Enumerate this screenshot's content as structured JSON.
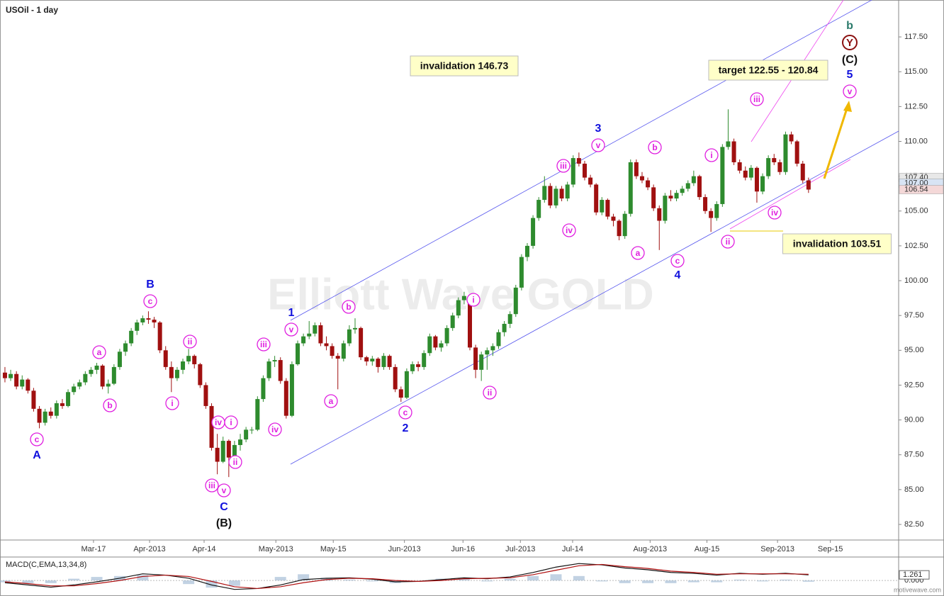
{
  "chart_data": {
    "type": "candlestick",
    "title": "USOil - 1 day",
    "watermark": "Elliott Wave GOLD",
    "xlim": [
      -0.86,
      155.7
    ],
    "ylim": [
      81.38,
      120.15
    ],
    "xticks": [
      {
        "value": 15.43,
        "label": "Mar-17"
      },
      {
        "value": 25.2,
        "label": "Apr-2013"
      },
      {
        "value": 34.7,
        "label": "Apr-14"
      },
      {
        "value": 47.2,
        "label": "May-2013"
      },
      {
        "value": 57.2,
        "label": "May-15"
      },
      {
        "value": 69.6,
        "label": "Jun-2013"
      },
      {
        "value": 79.8,
        "label": "Jun-16"
      },
      {
        "value": 89.8,
        "label": "Jul-2013"
      },
      {
        "value": 98.9,
        "label": "Jul-14"
      },
      {
        "value": 112.4,
        "label": "Aug-2013"
      },
      {
        "value": 122.3,
        "label": "Aug-15"
      },
      {
        "value": 134.6,
        "label": "Sep-2013"
      },
      {
        "value": 143.8,
        "label": "Sep-15"
      }
    ],
    "yticks": [
      {
        "value": 82.5,
        "label": "82.50"
      },
      {
        "value": 85,
        "label": "85.00"
      },
      {
        "value": 87.5,
        "label": "87.50"
      },
      {
        "value": 90,
        "label": "90.00"
      },
      {
        "value": 92.5,
        "label": "92.50"
      },
      {
        "value": 95,
        "label": "95.00"
      },
      {
        "value": 97.5,
        "label": "97.50"
      },
      {
        "value": 100,
        "label": "100.00"
      },
      {
        "value": 102.5,
        "label": "102.50"
      },
      {
        "value": 105,
        "label": "105.00"
      },
      {
        "value": 107.5,
        "label": "107.50"
      },
      {
        "value": 110,
        "label": "110.00"
      },
      {
        "value": 112.5,
        "label": "112.50"
      },
      {
        "value": 115,
        "label": "115.00"
      },
      {
        "value": 117.5,
        "label": "117.50"
      }
    ],
    "price_markers": [
      {
        "value": 107.4,
        "label": "107.40"
      },
      {
        "value": 107.0,
        "label": "107.00"
      },
      {
        "value": 106.54,
        "label": "106.54"
      }
    ],
    "up_color": "#2e8b2e",
    "down_color": "#a01010",
    "candles": [
      [
        93.4,
        93.8,
        92.7,
        93.0
      ],
      [
        93.0,
        93.6,
        92.8,
        93.3
      ],
      [
        93.3,
        93.5,
        92.2,
        92.4
      ],
      [
        92.4,
        93.2,
        92.2,
        92.9
      ],
      [
        92.9,
        93.0,
        91.9,
        92.1
      ],
      [
        92.1,
        92.3,
        90.6,
        90.8
      ],
      [
        90.8,
        91.0,
        89.4,
        89.8
      ],
      [
        89.8,
        90.8,
        89.6,
        90.6
      ],
      [
        90.6,
        90.9,
        90.1,
        90.3
      ],
      [
        90.3,
        91.4,
        90.1,
        91.2
      ],
      [
        91.2,
        91.5,
        90.8,
        91.0
      ],
      [
        91.0,
        92.2,
        90.9,
        92.0
      ],
      [
        92.0,
        92.6,
        91.8,
        92.4
      ],
      [
        92.4,
        92.9,
        92.2,
        92.7
      ],
      [
        92.7,
        93.5,
        92.5,
        93.3
      ],
      [
        93.3,
        93.8,
        93.1,
        93.6
      ],
      [
        93.6,
        94.1,
        93.3,
        93.9
      ],
      [
        93.9,
        94.0,
        92.2,
        92.4
      ],
      [
        92.4,
        92.9,
        91.9,
        92.6
      ],
      [
        92.6,
        94.0,
        92.5,
        93.8
      ],
      [
        93.8,
        95.1,
        93.6,
        94.9
      ],
      [
        94.9,
        95.7,
        94.6,
        95.5
      ],
      [
        95.5,
        96.6,
        95.3,
        96.4
      ],
      [
        96.4,
        97.2,
        96.1,
        97.0
      ],
      [
        97.0,
        97.5,
        96.8,
        97.3
      ],
      [
        97.3,
        97.8,
        96.9,
        97.2
      ],
      [
        97.2,
        97.4,
        96.6,
        97.0
      ],
      [
        97.0,
        97.1,
        94.8,
        95.0
      ],
      [
        95.0,
        95.3,
        93.6,
        93.8
      ],
      [
        93.8,
        94.2,
        92.0,
        93.0
      ],
      [
        93.0,
        93.8,
        92.8,
        93.6
      ],
      [
        93.6,
        94.4,
        93.3,
        94.2
      ],
      [
        94.2,
        95.1,
        94.0,
        94.6
      ],
      [
        94.6,
        94.7,
        93.7,
        94.0
      ],
      [
        94.0,
        94.1,
        92.3,
        92.5
      ],
      [
        92.5,
        92.7,
        90.8,
        91.0
      ],
      [
        91.0,
        91.2,
        87.8,
        88.0
      ],
      [
        88.0,
        89.0,
        86.1,
        87.0
      ],
      [
        87.0,
        88.8,
        86.9,
        88.5
      ],
      [
        88.5,
        88.6,
        85.9,
        87.3
      ],
      [
        87.3,
        88.5,
        86.6,
        88.2
      ],
      [
        88.2,
        89.0,
        87.8,
        88.6
      ],
      [
        88.6,
        89.5,
        88.4,
        89.3
      ],
      [
        89.3,
        89.5,
        89.0,
        89.3
      ],
      [
        89.3,
        91.7,
        89.2,
        91.5
      ],
      [
        91.5,
        93.2,
        91.3,
        93.0
      ],
      [
        93.0,
        94.4,
        92.8,
        94.2
      ],
      [
        94.2,
        94.6,
        93.8,
        94.3
      ],
      [
        94.3,
        94.5,
        92.6,
        92.8
      ],
      [
        92.8,
        93.0,
        90.1,
        90.3
      ],
      [
        90.3,
        94.2,
        90.2,
        94.0
      ],
      [
        94.0,
        95.7,
        93.9,
        95.5
      ],
      [
        95.5,
        96.2,
        95.3,
        96.0
      ],
      [
        96.0,
        97.1,
        95.8,
        96.2
      ],
      [
        96.2,
        97.0,
        96.0,
        96.8
      ],
      [
        96.8,
        97.0,
        95.3,
        95.5
      ],
      [
        95.5,
        96.0,
        95.0,
        95.3
      ],
      [
        95.3,
        95.5,
        94.4,
        94.6
      ],
      [
        94.6,
        94.8,
        92.2,
        94.4
      ],
      [
        94.4,
        95.7,
        94.2,
        95.5
      ],
      [
        95.5,
        96.8,
        95.3,
        96.5
      ],
      [
        96.5,
        97.3,
        96.2,
        96.6
      ],
      [
        96.6,
        96.7,
        94.3,
        94.5
      ],
      [
        94.5,
        94.6,
        93.9,
        94.2
      ],
      [
        94.2,
        94.6,
        93.9,
        94.4
      ],
      [
        94.4,
        94.5,
        93.4,
        93.8
      ],
      [
        93.8,
        94.8,
        93.6,
        94.6
      ],
      [
        94.6,
        94.7,
        93.6,
        93.8
      ],
      [
        93.8,
        94.0,
        92.0,
        92.2
      ],
      [
        92.2,
        92.4,
        91.3,
        91.6
      ],
      [
        91.6,
        93.7,
        91.5,
        93.5
      ],
      [
        93.5,
        94.2,
        93.3,
        94.0
      ],
      [
        94.0,
        94.2,
        93.5,
        93.8
      ],
      [
        93.8,
        95.0,
        93.6,
        94.8
      ],
      [
        94.8,
        96.2,
        94.6,
        96.0
      ],
      [
        96.0,
        96.1,
        95.0,
        95.2
      ],
      [
        95.2,
        95.7,
        94.9,
        95.5
      ],
      [
        95.5,
        96.8,
        95.3,
        96.6
      ],
      [
        96.6,
        97.7,
        96.4,
        97.5
      ],
      [
        97.5,
        98.8,
        97.3,
        98.6
      ],
      [
        98.6,
        99.2,
        98.3,
        98.9
      ],
      [
        98.9,
        99.0,
        95.0,
        95.2
      ],
      [
        95.2,
        95.4,
        93.0,
        93.6
      ],
      [
        93.6,
        94.9,
        92.8,
        94.7
      ],
      [
        94.7,
        95.2,
        93.6,
        95.0
      ],
      [
        95.0,
        95.5,
        94.6,
        95.3
      ],
      [
        95.3,
        96.5,
        95.1,
        96.3
      ],
      [
        96.3,
        97.1,
        96.0,
        96.9
      ],
      [
        96.9,
        97.8,
        96.6,
        97.6
      ],
      [
        97.6,
        99.7,
        97.4,
        99.5
      ],
      [
        99.5,
        101.9,
        99.3,
        101.7
      ],
      [
        101.7,
        102.7,
        101.4,
        102.5
      ],
      [
        102.5,
        104.7,
        102.3,
        104.5
      ],
      [
        104.5,
        106.0,
        104.3,
        105.8
      ],
      [
        105.8,
        107.5,
        105.6,
        106.8
      ],
      [
        106.8,
        107.0,
        105.2,
        105.4
      ],
      [
        105.4,
        106.8,
        105.2,
        106.6
      ],
      [
        106.6,
        106.8,
        105.7,
        105.9
      ],
      [
        105.9,
        107.1,
        105.7,
        106.9
      ],
      [
        106.9,
        109.0,
        106.7,
        108.8
      ],
      [
        108.8,
        109.2,
        108.2,
        108.4
      ],
      [
        108.4,
        108.6,
        107.2,
        107.4
      ],
      [
        107.4,
        107.6,
        106.7,
        106.9
      ],
      [
        106.9,
        107.0,
        104.7,
        104.9
      ],
      [
        104.9,
        106.0,
        104.7,
        105.8
      ],
      [
        105.8,
        105.9,
        104.4,
        104.6
      ],
      [
        104.6,
        104.8,
        103.9,
        104.3
      ],
      [
        104.3,
        104.4,
        102.9,
        103.2
      ],
      [
        103.2,
        105.0,
        103.0,
        104.8
      ],
      [
        104.8,
        108.7,
        104.6,
        108.5
      ],
      [
        108.5,
        108.7,
        107.3,
        107.5
      ],
      [
        107.5,
        107.8,
        107.0,
        107.2
      ],
      [
        107.2,
        107.4,
        106.5,
        106.7
      ],
      [
        106.7,
        106.9,
        105.0,
        105.2
      ],
      [
        105.2,
        105.4,
        102.2,
        104.3
      ],
      [
        104.3,
        106.3,
        104.1,
        106.1
      ],
      [
        106.1,
        106.5,
        105.7,
        105.9
      ],
      [
        105.9,
        106.5,
        105.7,
        106.3
      ],
      [
        106.3,
        106.8,
        106.1,
        106.6
      ],
      [
        106.6,
        107.2,
        106.4,
        107.0
      ],
      [
        107.0,
        107.9,
        106.8,
        107.5
      ],
      [
        107.5,
        107.6,
        105.8,
        106.0
      ],
      [
        106.0,
        106.2,
        104.8,
        105.0
      ],
      [
        105.0,
        105.2,
        103.5,
        104.5
      ],
      [
        104.5,
        105.7,
        104.3,
        105.5
      ],
      [
        105.5,
        109.8,
        105.3,
        109.6
      ],
      [
        109.6,
        112.3,
        109.4,
        110.0
      ],
      [
        110.0,
        110.2,
        108.3,
        108.5
      ],
      [
        108.5,
        108.7,
        107.7,
        107.9
      ],
      [
        107.9,
        108.2,
        107.2,
        107.4
      ],
      [
        107.4,
        108.3,
        107.2,
        108.1
      ],
      [
        108.1,
        108.2,
        105.6,
        106.4
      ],
      [
        106.4,
        107.7,
        106.2,
        107.5
      ],
      [
        107.5,
        109.0,
        107.3,
        108.8
      ],
      [
        108.8,
        109.1,
        108.3,
        108.5
      ],
      [
        108.5,
        108.7,
        107.6,
        107.8
      ],
      [
        107.8,
        110.7,
        107.6,
        110.5
      ],
      [
        110.5,
        110.7,
        109.8,
        110.0
      ],
      [
        110.0,
        110.1,
        108.2,
        108.4
      ],
      [
        108.4,
        108.6,
        107.0,
        107.2
      ],
      [
        107.2,
        107.4,
        106.3,
        106.54
      ]
    ],
    "annotations": [
      "c",
      "A",
      "a",
      "b",
      "c",
      "B",
      "ii",
      "i",
      "iv",
      "i",
      "ii",
      "iii",
      "v",
      "C",
      "(B)",
      "iii",
      "iv",
      "v",
      "1",
      "b",
      "a",
      "c",
      "2",
      "i",
      "ii",
      "iii",
      "iv",
      "v",
      "3",
      "b",
      "a",
      "c",
      "4",
      "i",
      "ii",
      "iii",
      "iv",
      "v",
      "5",
      "(C)",
      "Y",
      "b"
    ],
    "boxes": [
      "invalidation 146.73",
      "target 122.55 - 120.84",
      "invalidation 103.51"
    ],
    "macd": {
      "label": "MACD(C,EMA,13,34,8)",
      "ylim": [
        -3.0,
        5.1
      ],
      "yticks": [
        {
          "value": 0,
          "label": "0.000"
        }
      ],
      "value_marker": {
        "value": 1.261,
        "label": "1.261"
      },
      "x": [
        0,
        4,
        8,
        12,
        16,
        20,
        24,
        28,
        32,
        36,
        40,
        44,
        48,
        52,
        56,
        60,
        64,
        68,
        72,
        76,
        80,
        84,
        88,
        92,
        96,
        100,
        104,
        108,
        112,
        116,
        120,
        124,
        128,
        132,
        136,
        140
      ],
      "macd": [
        -0.5,
        -1.0,
        -1.5,
        -1.0,
        -0.3,
        0.5,
        1.5,
        1.2,
        0.5,
        -1.0,
        -2.0,
        -1.8,
        -1.0,
        0.2,
        0.5,
        0.6,
        0.3,
        -0.3,
        -0.2,
        0.2,
        0.6,
        0.4,
        0.8,
        1.8,
        3.0,
        3.8,
        3.5,
        2.8,
        2.4,
        1.8,
        1.6,
        1.2,
        1.6,
        1.4,
        1.6,
        1.261
      ],
      "signal": [
        -0.3,
        -0.7,
        -1.2,
        -1.2,
        -0.7,
        0.0,
        0.9,
        1.2,
        0.9,
        -0.2,
        -1.4,
        -1.8,
        -1.4,
        -0.5,
        0.2,
        0.5,
        0.4,
        0.0,
        -0.2,
        0.0,
        0.4,
        0.5,
        0.6,
        1.3,
        2.3,
        3.3,
        3.6,
        3.1,
        2.7,
        2.1,
        1.8,
        1.4,
        1.5,
        1.5,
        1.5,
        1.4
      ]
    },
    "credit": "motivewave.com"
  }
}
